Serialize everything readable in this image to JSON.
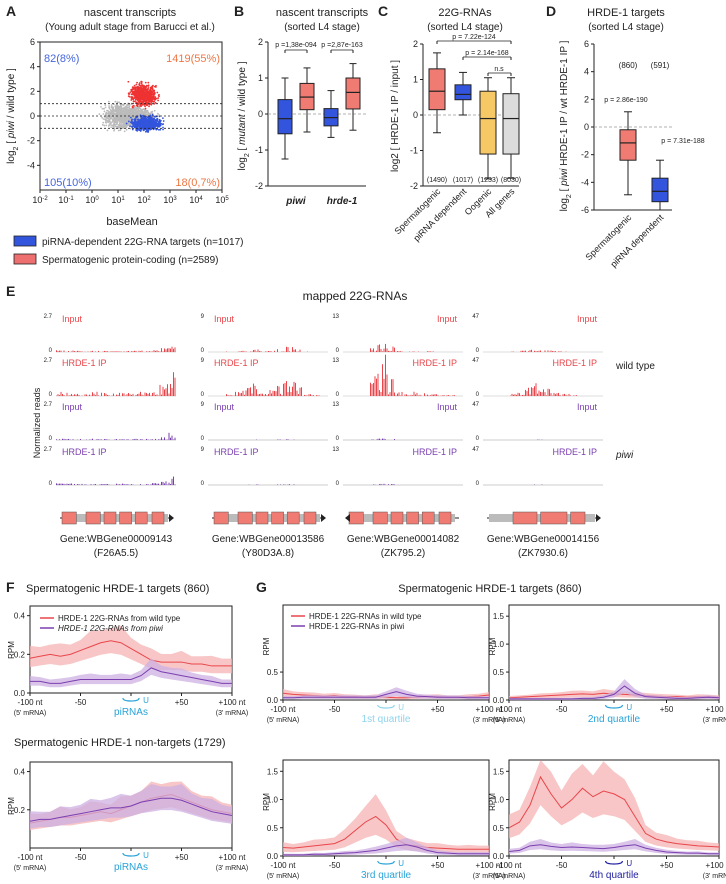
{
  "figure": {
    "panels": {
      "A": {
        "letter": "A",
        "title": "nascent transcripts",
        "subtitle": "(Young adult stage from Barucci et al.)",
        "xlabel": "baseMean",
        "ylabel_parts": [
          "log",
          "2",
          " [ ",
          "piwi",
          " / wild type ]"
        ],
        "x_ticks": [
          {
            "base": "10",
            "exp": "-2"
          },
          {
            "base": "10",
            "exp": "-1"
          },
          {
            "base": "10",
            "exp": "0"
          },
          {
            "base": "10",
            "exp": "1"
          },
          {
            "base": "10",
            "exp": "2"
          },
          {
            "base": "10",
            "exp": "3"
          },
          {
            "base": "10",
            "exp": "4"
          },
          {
            "base": "10",
            "exp": "5"
          }
        ],
        "y_ticks": [
          "6",
          "4",
          "2",
          "0",
          "-2",
          "-4"
        ],
        "corner_labels": {
          "top_left": "82(8%)",
          "top_right": "1419(55%)",
          "bottom_left": "105(10%)",
          "bottom_right": "18(0,7%)"
        },
        "legend": [
          {
            "label": "piRNA-dependent 22G-RNA targets (n=1017)",
            "color": "#3355dd"
          },
          {
            "label": "Spermatogenic protein-coding (n=2589)",
            "color": "#ee6f6f"
          }
        ]
      },
      "B": {
        "letter": "B",
        "title": "nascent transcripts",
        "subtitle": "(sorted L4 stage)",
        "ylabel_parts": [
          "log",
          "2",
          " [ ",
          "mutant",
          " / wild type ]"
        ],
        "y_ticks": [
          "2",
          "1",
          "0",
          "-1",
          "-2"
        ],
        "group_labels": [
          "piwi",
          "hrde-1"
        ],
        "pvalues": [
          "p =1,38e-094",
          "p =2,87e-163"
        ]
      },
      "C": {
        "letter": "C",
        "title": "22G-RNAs",
        "subtitle": "(sorted L4 stage)",
        "ylabel": "log2 [ HRDE-1 IP / input ]",
        "y_ticks": [
          "2",
          "1",
          "0",
          "-1",
          "-2"
        ],
        "categories": [
          "Spermatogenic",
          "piRNA dependent",
          "Oogenic",
          "All genes"
        ],
        "counts": [
          "(1490)",
          "(1017)",
          "(1233)",
          "(8030)"
        ],
        "pvalues": [
          "p = 7.22e-124",
          "p = 2.14e-168",
          "n.s"
        ]
      },
      "D": {
        "letter": "D",
        "title": "HRDE-1 targets",
        "subtitle": "(sorted L4 stage)",
        "ylabel_parts": [
          "log",
          "2",
          " [ ",
          "piwi",
          " HRDE-1 IP / wt HRDE-1 IP ]"
        ],
        "y_ticks": [
          "6",
          "4",
          "2",
          "0",
          "-2",
          "-4",
          "-6"
        ],
        "categories": [
          "Spermatogenic",
          "piRNA dependent"
        ],
        "counts": [
          "(860)",
          "(591)"
        ],
        "pvalues": [
          "p = 2.86e-190",
          "p = 7.31e-188"
        ]
      },
      "E": {
        "letter": "E",
        "title": "mapped 22G-RNAs",
        "ylabel": "Normalized reads",
        "row_labels": [
          "wild type",
          "piwi"
        ],
        "tracks": [
          "Input",
          "HRDE-1 IP",
          "Input",
          "HRDE-1 IP"
        ],
        "genes": [
          {
            "id": "Gene:WBGene00009143",
            "alias": "(F26A5.5)",
            "scale_max": "2.7",
            "scale_min": "0"
          },
          {
            "id": "Gene:WBGene00013586",
            "alias": "(Y80D3A.8)",
            "scale_max": "9",
            "scale_min": "0"
          },
          {
            "id": "Gene:WBGene00014082",
            "alias": "(ZK795.2)",
            "scale_max": "13",
            "scale_min": "0"
          },
          {
            "id": "Gene:WBGene00014156",
            "alias": "(ZK7930.6)",
            "scale_max": "47",
            "scale_min": "0"
          }
        ]
      },
      "F": {
        "letter": "F",
        "title_targets": "Spermatogenic HRDE-1 targets (860)",
        "title_nontargets": "Spermatogenic HRDE-1 non-targets (1729)",
        "legend": [
          "HRDE-1 22G-RNAs from wild type",
          "HRDE-1 22G-RNAs from piwi"
        ],
        "x_ticks": [
          "-100 nt",
          "-50",
          "U",
          "+50",
          "+100 nt"
        ],
        "x_sub": [
          "(5' mRNA)",
          "(3' mRNA)"
        ],
        "center_label": "piRNAs",
        "y_ticks_top": [
          "0.4",
          "0.2",
          "0.0"
        ],
        "y_ticks_bottom": [
          "0.4",
          "0.2"
        ],
        "ylabel": "RPM"
      },
      "G": {
        "letter": "G",
        "title": "Spermatogenic HRDE-1 targets (860)",
        "legend": [
          "HRDE-1 22G-RNAs in wild type",
          "HRDE-1 22G-RNAs in piwi"
        ],
        "quartiles": [
          "1st quartile",
          "2nd quartile",
          "3rd quartile",
          "4th quartile"
        ],
        "y_ticks": [
          "1.5",
          "1.0",
          "0.5",
          "0.0"
        ],
        "ylabel": "RPM"
      }
    },
    "colors": {
      "red": "#e8464b",
      "red_light": "#f5b3b3",
      "purple": "#7b3fb0",
      "purple_light": "#cdb0e2",
      "blue": "#3355dd",
      "salmon": "#ef7b72",
      "yellow": "#f6c866",
      "grey": "#dcdcdc",
      "cyan": "#2aa3d8",
      "cyan_light": "#8fd3ee",
      "navy": "#2020a0"
    },
    "chart_data": [
      {
        "panel": "B",
        "type": "box",
        "ylim": [
          -2,
          2
        ],
        "groups": [
          "piwi",
          "hrde-1"
        ],
        "boxes": [
          {
            "group": "piwi",
            "color": "#3355dd",
            "whisker_low": -1.25,
            "q1": -0.55,
            "median": -0.13,
            "q3": 0.4,
            "whisker_high": 1.0
          },
          {
            "group": "piwi",
            "color": "#ef7b72",
            "whisker_low": -0.5,
            "q1": 0.12,
            "median": 0.47,
            "q3": 0.85,
            "whisker_high": 1.28
          },
          {
            "group": "hrde-1",
            "color": "#3355dd",
            "whisker_low": -0.65,
            "q1": -0.33,
            "median": -0.1,
            "q3": 0.15,
            "whisker_high": 0.65
          },
          {
            "group": "hrde-1",
            "color": "#ef7b72",
            "whisker_low": -0.45,
            "q1": 0.14,
            "median": 0.6,
            "q3": 1.0,
            "whisker_high": 1.4
          }
        ]
      },
      {
        "panel": "C",
        "type": "box",
        "ylim": [
          -2,
          2
        ],
        "boxes": [
          {
            "category": "Spermatogenic",
            "color": "#ef7b72",
            "whisker_low": -0.5,
            "q1": 0.15,
            "median": 0.67,
            "q3": 1.3,
            "whisker_high": 1.75
          },
          {
            "category": "piRNA dependent",
            "color": "#3355dd",
            "whisker_low": 0.0,
            "q1": 0.43,
            "median": 0.58,
            "q3": 0.85,
            "whisker_high": 1.2
          },
          {
            "category": "Oogenic",
            "color": "#f6c866",
            "whisker_low": -1.8,
            "q1": -1.1,
            "median": -0.1,
            "q3": 0.67,
            "whisker_high": 1.05
          },
          {
            "category": "All genes",
            "color": "#dcdcdc",
            "whisker_low": -1.78,
            "q1": -1.1,
            "median": -0.1,
            "q3": 0.6,
            "whisker_high": 1.05
          }
        ]
      },
      {
        "panel": "D",
        "type": "box",
        "ylim": [
          -6,
          6
        ],
        "boxes": [
          {
            "category": "Spermatogenic",
            "color": "#ef7b72",
            "whisker_low": -4.9,
            "q1": -2.4,
            "median": -1.15,
            "q3": -0.2,
            "whisker_high": 1.1
          },
          {
            "category": "piRNA dependent",
            "color": "#3355dd",
            "whisker_low": -6.0,
            "q1": -5.4,
            "median": -4.65,
            "q3": -3.7,
            "whisker_high": -2.4
          }
        ]
      },
      {
        "panel": "F-top",
        "type": "line",
        "title": "Spermatogenic HRDE-1 targets (860)",
        "x": [
          -100,
          -90,
          -80,
          -70,
          -60,
          -50,
          -40,
          -30,
          -20,
          -10,
          0,
          10,
          20,
          30,
          40,
          50,
          60,
          70,
          80,
          90,
          100
        ],
        "ylim": [
          0,
          0.45
        ],
        "series": [
          {
            "name": "wild type",
            "values": [
              0.18,
              0.19,
              0.2,
              0.19,
              0.2,
              0.22,
              0.24,
              0.26,
              0.27,
              0.26,
              0.23,
              0.2,
              0.17,
              0.16,
              0.16,
              0.16,
              0.15,
              0.15,
              0.14,
              0.14,
              0.14
            ]
          },
          {
            "name": "piwi",
            "values": [
              0.06,
              0.06,
              0.05,
              0.05,
              0.06,
              0.07,
              0.07,
              0.07,
              0.07,
              0.07,
              0.07,
              0.09,
              0.13,
              0.11,
              0.1,
              0.09,
              0.08,
              0.07,
              0.06,
              0.05,
              0.05
            ]
          }
        ]
      },
      {
        "panel": "F-bottom",
        "type": "line",
        "title": "Spermatogenic HRDE-1 non-targets (1729)",
        "x": [
          -100,
          -90,
          -80,
          -70,
          -60,
          -50,
          -40,
          -30,
          -20,
          -10,
          0,
          10,
          20,
          30,
          40,
          50,
          60,
          70,
          80,
          90,
          100
        ],
        "ylim": [
          0,
          0.45
        ],
        "series": [
          {
            "name": "wild type",
            "values": [
              0.13,
              0.14,
              0.15,
              0.16,
              0.16,
              0.17,
              0.18,
              0.19,
              0.18,
              0.2,
              0.22,
              0.24,
              0.26,
              0.27,
              0.28,
              0.26,
              0.24,
              0.22,
              0.2,
              0.19,
              0.18
            ]
          },
          {
            "name": "piwi",
            "values": [
              0.14,
              0.15,
              0.15,
              0.16,
              0.17,
              0.18,
              0.19,
              0.2,
              0.21,
              0.21,
              0.22,
              0.24,
              0.25,
              0.26,
              0.26,
              0.25,
              0.23,
              0.21,
              0.19,
              0.18,
              0.17
            ]
          }
        ]
      },
      {
        "panel": "G-q1",
        "type": "line",
        "title": "1st quartile",
        "ylim": [
          0,
          1.7
        ],
        "x": [
          -100,
          -90,
          -80,
          -70,
          -60,
          -50,
          -40,
          -30,
          -20,
          -10,
          0,
          10,
          20,
          30,
          40,
          50,
          60,
          70,
          80,
          90,
          100
        ],
        "series": [
          {
            "name": "wild type",
            "values": [
              0.12,
              0.1,
              0.09,
              0.08,
              0.07,
              0.08,
              0.06,
              0.06,
              0.05,
              0.06,
              0.05,
              0.04,
              0.04,
              0.05,
              0.06,
              0.06,
              0.05,
              0.05,
              0.06,
              0.07,
              0.09
            ]
          },
          {
            "name": "piwi",
            "values": [
              0.04,
              0.04,
              0.05,
              0.05,
              0.05,
              0.05,
              0.05,
              0.05,
              0.05,
              0.05,
              0.1,
              0.15,
              0.1,
              0.07,
              0.06,
              0.05,
              0.05,
              0.05,
              0.04,
              0.04,
              0.04
            ]
          }
        ]
      },
      {
        "panel": "G-q2",
        "type": "line",
        "title": "2nd quartile",
        "ylim": [
          0,
          1.7
        ],
        "x": [
          -100,
          -90,
          -80,
          -70,
          -60,
          -50,
          -40,
          -30,
          -20,
          -10,
          0,
          10,
          20,
          30,
          40,
          50,
          60,
          70,
          80,
          90,
          100
        ],
        "series": [
          {
            "name": "wild type",
            "values": [
              0.04,
              0.05,
              0.06,
              0.07,
              0.08,
              0.09,
              0.1,
              0.11,
              0.1,
              0.12,
              0.11,
              0.1,
              0.09,
              0.08,
              0.07,
              0.06,
              0.06,
              0.05,
              0.06,
              0.06,
              0.05
            ]
          },
          {
            "name": "piwi",
            "values": [
              0.02,
              0.02,
              0.02,
              0.02,
              0.02,
              0.02,
              0.02,
              0.03,
              0.03,
              0.05,
              0.1,
              0.25,
              0.12,
              0.06,
              0.05,
              0.04,
              0.03,
              0.03,
              0.04,
              0.05,
              0.04
            ]
          }
        ]
      },
      {
        "panel": "G-q3",
        "type": "line",
        "title": "3rd quartile",
        "ylim": [
          0,
          1.7
        ],
        "x": [
          -100,
          -90,
          -80,
          -70,
          -60,
          -50,
          -40,
          -30,
          -20,
          -10,
          0,
          10,
          20,
          30,
          40,
          50,
          60,
          70,
          80,
          90,
          100
        ],
        "series": [
          {
            "name": "wild type",
            "values": [
              0.15,
              0.14,
              0.16,
              0.18,
              0.2,
              0.22,
              0.3,
              0.45,
              0.6,
              0.7,
              0.55,
              0.3,
              0.2,
              0.18,
              0.15,
              0.14,
              0.13,
              0.12,
              0.12,
              0.12,
              0.12
            ]
          },
          {
            "name": "piwi",
            "values": [
              0.02,
              0.02,
              0.02,
              0.03,
              0.03,
              0.04,
              0.05,
              0.06,
              0.08,
              0.1,
              0.14,
              0.18,
              0.2,
              0.16,
              0.1,
              0.06,
              0.05,
              0.04,
              0.04,
              0.04,
              0.04
            ]
          }
        ]
      },
      {
        "panel": "G-q4",
        "type": "line",
        "title": "4th quartile",
        "ylim": [
          0,
          1.7
        ],
        "x": [
          -100,
          -90,
          -80,
          -70,
          -60,
          -50,
          -40,
          -30,
          -20,
          -10,
          0,
          10,
          20,
          30,
          40,
          50,
          60,
          70,
          80,
          90,
          100
        ],
        "series": [
          {
            "name": "wild type",
            "values": [
              0.5,
              0.6,
              0.9,
              1.4,
              1.1,
              0.85,
              1.0,
              1.2,
              1.05,
              1.15,
              1.1,
              1.0,
              0.7,
              0.4,
              0.3,
              0.25,
              0.22,
              0.2,
              0.18,
              0.17,
              0.16
            ]
          },
          {
            "name": "piwi",
            "values": [
              0.08,
              0.1,
              0.18,
              0.2,
              0.17,
              0.15,
              0.16,
              0.15,
              0.14,
              0.13,
              0.15,
              0.18,
              0.2,
              0.14,
              0.1,
              0.07,
              0.06,
              0.05,
              0.05,
              0.04,
              0.04
            ]
          }
        ]
      }
    ]
  }
}
